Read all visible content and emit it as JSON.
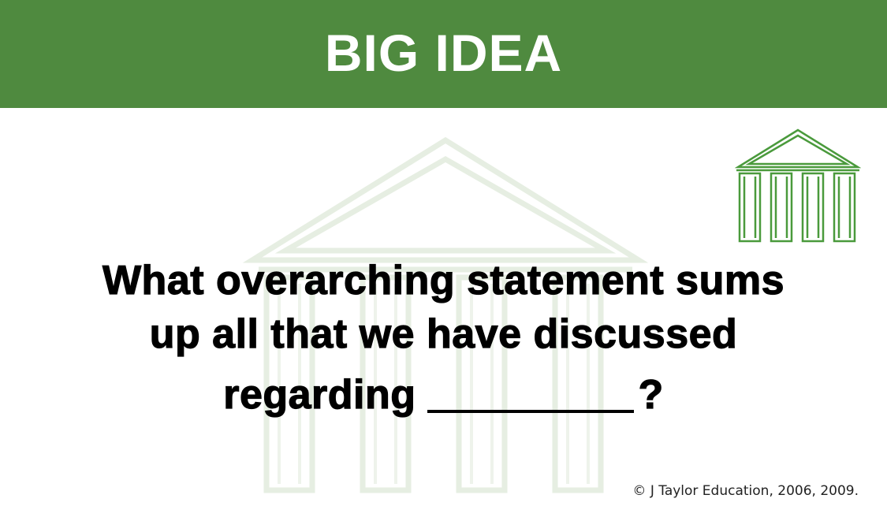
{
  "header": {
    "title": "BIG IDEA",
    "background_color": "#4f8a3f"
  },
  "question": {
    "line1": "What overarching statement sums",
    "line2": "up all that we have discussed",
    "line3_prefix": "regarding",
    "line3_suffix": "?"
  },
  "footer": {
    "copyright": "© J Taylor Education, 2006, 2009."
  },
  "icons": {
    "corner": "temple-icon",
    "background": "temple-watermark-icon"
  },
  "colors": {
    "accent_green": "#4f8a3f",
    "icon_green": "#4a9a3c",
    "watermark": "#e8efe4"
  }
}
